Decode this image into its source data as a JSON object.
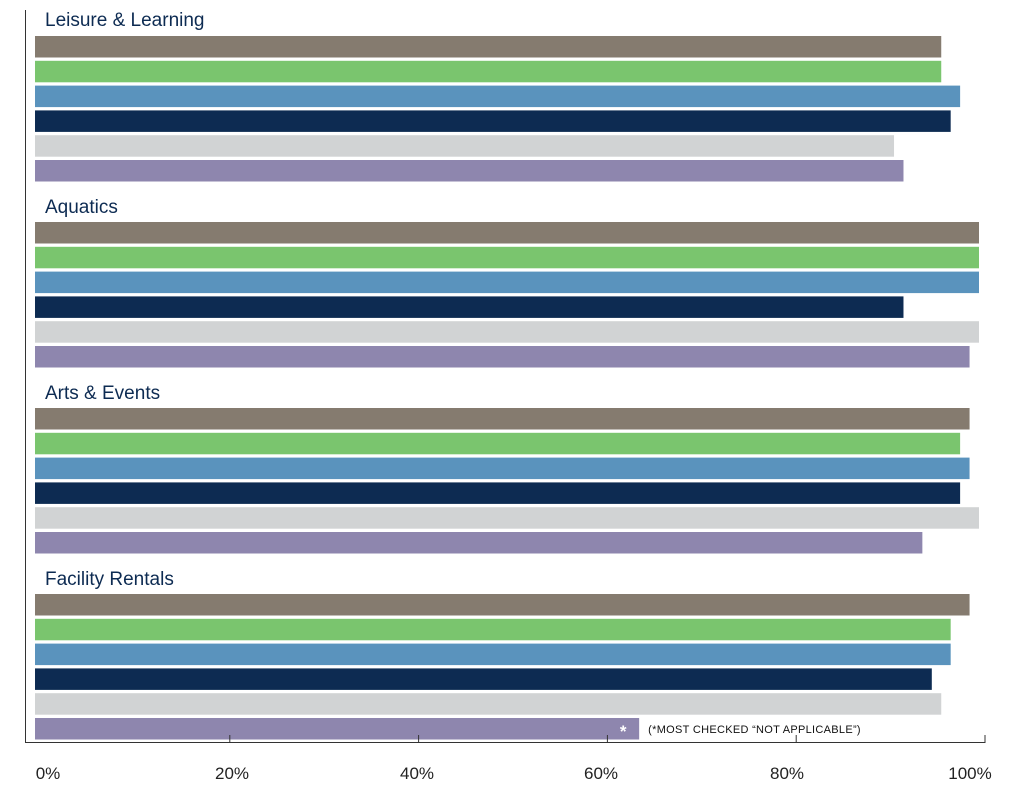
{
  "chart_data": {
    "type": "bar",
    "orientation": "horizontal",
    "xlim": [
      0,
      100
    ],
    "x_ticks": [
      "0%",
      "20%",
      "40%",
      "60%",
      "80%",
      "100%"
    ],
    "grid": false,
    "legend": "none",
    "series_colors": [
      "#857b6f",
      "#7ac56e",
      "#5a93bd",
      "#0d2b52",
      "#d1d3d4",
      "#8e86ae"
    ],
    "groups": [
      {
        "label": "Leisure & Learning",
        "values": [
          96,
          96,
          98,
          97,
          91,
          92
        ]
      },
      {
        "label": "Aquatics",
        "values": [
          100,
          100,
          100,
          92,
          100,
          99
        ]
      },
      {
        "label": "Arts & Events",
        "values": [
          99,
          98,
          99,
          98,
          100,
          94
        ]
      },
      {
        "label": "Facility Rentals",
        "values": [
          99,
          97,
          97,
          95,
          96,
          64
        ]
      }
    ],
    "annotation": {
      "marker": "*",
      "text": "(*MOST CHECKED “NOT APPLICABLE”)"
    }
  }
}
